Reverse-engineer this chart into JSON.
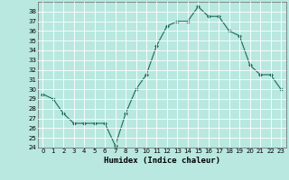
{
  "title": "",
  "xlabel": "Humidex (Indice chaleur)",
  "ylabel": "",
  "x": [
    0,
    1,
    2,
    3,
    4,
    5,
    6,
    7,
    8,
    9,
    10,
    11,
    12,
    13,
    14,
    15,
    16,
    17,
    18,
    19,
    20,
    21,
    22,
    23
  ],
  "y": [
    29.5,
    29.0,
    27.5,
    26.5,
    26.5,
    26.5,
    26.5,
    24.2,
    27.5,
    30.0,
    31.5,
    34.5,
    36.5,
    37.0,
    37.0,
    38.5,
    37.5,
    37.5,
    36.0,
    35.5,
    32.5,
    31.5,
    31.5,
    30.0
  ],
  "line_color": "#1a6b5a",
  "marker_color": "#1a6b5a",
  "bg_color": "#b8e8e0",
  "grid_color": "#ffffff",
  "ylim": [
    24,
    39
  ],
  "yticks": [
    24,
    25,
    26,
    27,
    28,
    29,
    30,
    31,
    32,
    33,
    34,
    35,
    36,
    37,
    38
  ],
  "xticks": [
    0,
    1,
    2,
    3,
    4,
    5,
    6,
    7,
    8,
    9,
    10,
    11,
    12,
    13,
    14,
    15,
    16,
    17,
    18,
    19,
    20,
    21,
    22,
    23
  ],
  "tick_fontsize": 5.0,
  "xlabel_fontsize": 6.5,
  "marker_size": 2.0,
  "linewidth": 0.8
}
